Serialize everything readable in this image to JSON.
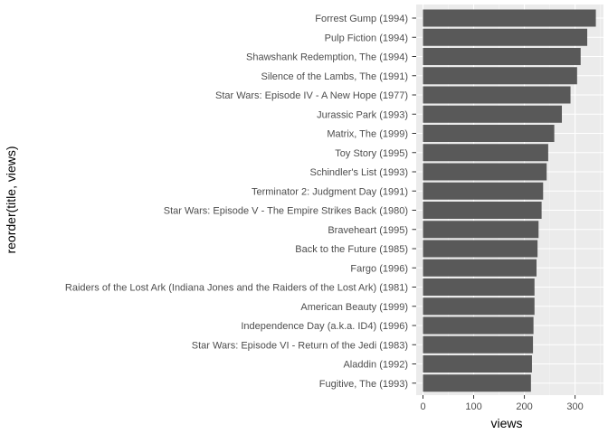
{
  "chart_data": {
    "type": "bar",
    "orientation": "horizontal",
    "xlabel": "views",
    "ylabel": "reorder(title, views)",
    "xlim": [
      0,
      350
    ],
    "xticks": [
      0,
      100,
      200,
      300
    ],
    "grid": true,
    "colors": {
      "bar": "#595959",
      "panel": "#ebebeb",
      "grid_major": "#ffffff",
      "grid_minor": "#f5f5f5",
      "tick_text": "#4d4d4d"
    },
    "categories": [
      "Forrest Gump (1994)",
      "Pulp Fiction (1994)",
      "Shawshank Redemption, The (1994)",
      "Silence of the Lambs, The (1991)",
      "Star Wars: Episode IV - A New Hope (1977)",
      "Jurassic Park (1993)",
      "Matrix, The (1999)",
      "Toy Story (1995)",
      "Schindler's List (1993)",
      "Terminator 2: Judgment Day (1991)",
      "Star Wars: Episode V - The Empire Strikes Back (1980)",
      "Braveheart (1995)",
      "Back to the Future (1985)",
      "Fargo (1996)",
      "Raiders of the Lost Ark (Indiana Jones and the Raiders of the Lost Ark) (1981)",
      "American Beauty (1999)",
      "Independence Day (a.k.a. ID4) (1996)",
      "Star Wars: Episode VI - Return of the Jedi (1983)",
      "Aladdin (1992)",
      "Fugitive, The (1993)"
    ],
    "values": [
      341,
      324,
      311,
      304,
      291,
      274,
      259,
      247,
      244,
      237,
      234,
      228,
      226,
      224,
      220,
      220,
      218,
      217,
      215,
      213
    ]
  }
}
